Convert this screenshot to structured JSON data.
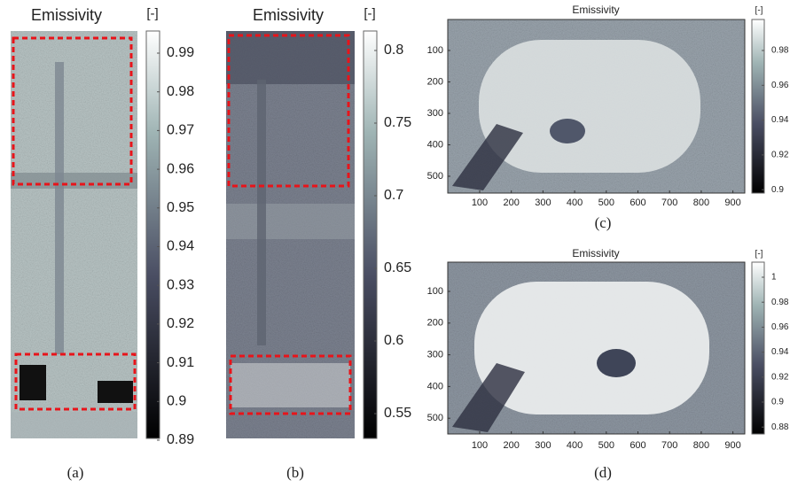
{
  "panels": [
    {
      "title": "Emissivity",
      "colorbar_unit": "[-]",
      "colorbar_ticks": [
        0.99,
        0.98,
        0.97,
        0.96,
        0.95,
        0.94,
        0.93,
        0.92,
        0.91,
        0.9,
        0.89
      ],
      "caption": "(a)"
    },
    {
      "title": "Emissivity",
      "colorbar_unit": "[-]",
      "colorbar_ticks": [
        0.8,
        0.75,
        0.7,
        0.65,
        0.6,
        0.55
      ],
      "caption": "(b)"
    },
    {
      "title": "Emissivity",
      "colorbar_unit": "[-]",
      "colorbar_ticks": [
        0.98,
        0.96,
        0.94,
        0.92,
        0.9
      ],
      "x_ticks": [
        100,
        200,
        300,
        400,
        500,
        600,
        700,
        800,
        900
      ],
      "y_ticks": [
        100,
        200,
        300,
        400,
        500
      ],
      "caption": "(c)"
    },
    {
      "title": "Emissivity",
      "colorbar_unit": "[-]",
      "colorbar_ticks": [
        1,
        0.98,
        0.96,
        0.94,
        0.92,
        0.9,
        0.88
      ],
      "x_ticks": [
        100,
        200,
        300,
        400,
        500,
        600,
        700,
        800,
        900
      ],
      "y_ticks": [
        100,
        200,
        300,
        400,
        500
      ],
      "caption": "(d)"
    }
  ]
}
